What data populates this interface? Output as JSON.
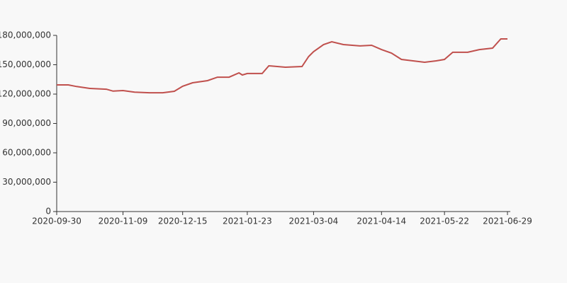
{
  "chart_data": {
    "type": "line",
    "x": [
      "2020-09-30",
      "2020-10-07",
      "2020-10-12",
      "2020-10-20",
      "2020-10-30",
      "2020-11-03",
      "2020-11-09",
      "2020-11-16",
      "2020-11-25",
      "2020-12-03",
      "2020-12-10",
      "2020-12-15",
      "2020-12-21",
      "2020-12-30",
      "2021-01-05",
      "2021-01-12",
      "2021-01-18",
      "2021-01-20",
      "2021-01-23",
      "2021-02-01",
      "2021-02-05",
      "2021-02-15",
      "2021-02-25",
      "2021-03-01",
      "2021-03-04",
      "2021-03-10",
      "2021-03-15",
      "2021-03-22",
      "2021-04-01",
      "2021-04-08",
      "2021-04-14",
      "2021-04-20",
      "2021-04-26",
      "2021-05-03",
      "2021-05-10",
      "2021-05-17",
      "2021-05-22",
      "2021-05-27",
      "2021-06-05",
      "2021-06-12",
      "2021-06-20",
      "2021-06-25",
      "2021-06-29"
    ],
    "series": [
      {
        "color": "#c0504d",
        "values": [
          129400000,
          129400000,
          127700000,
          125800000,
          125000000,
          123000000,
          123600000,
          122000000,
          121400000,
          121400000,
          122900000,
          128000000,
          131600000,
          133700000,
          137300000,
          137300000,
          141700000,
          139500000,
          141000000,
          141000000,
          148900000,
          147500000,
          148200000,
          158300000,
          163400000,
          170600000,
          173500000,
          170600000,
          169200000,
          169900000,
          165500000,
          161900000,
          155400000,
          154000000,
          152500000,
          154000000,
          155400000,
          162700000,
          162700000,
          165500000,
          167000000,
          176400000,
          176400000
        ]
      }
    ],
    "xlim": [
      "2020-09-30",
      "2021-06-29"
    ],
    "xticks": [
      "2020-09-30",
      "2020-11-09",
      "2020-12-15",
      "2021-01-23",
      "2021-03-04",
      "2021-04-14",
      "2021-05-22",
      "2021-06-29"
    ],
    "ylim": [
      0,
      180000000
    ],
    "yticks": [
      0,
      {
        "value": 30000000,
        "label": "30,000,000"
      },
      {
        "value": 60000000,
        "label": "60,000,000"
      },
      {
        "value": 90000000,
        "label": "90,000,000"
      },
      {
        "value": 120000000,
        "label": "120,000,000"
      },
      {
        "value": 150000000,
        "label": "150,000,000"
      },
      {
        "value": 180000000,
        "label": "180,000,000"
      }
    ]
  }
}
